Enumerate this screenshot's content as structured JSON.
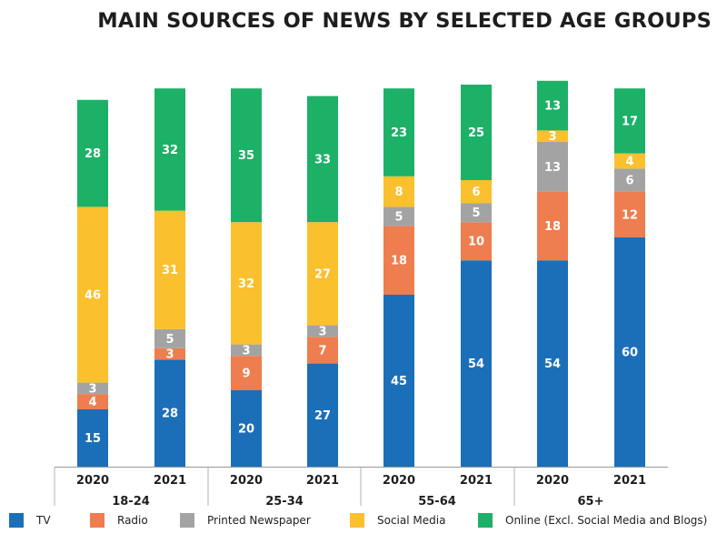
{
  "chart_data": {
    "type": "bar",
    "stacked": true,
    "title": "MAIN SOURCES OF NEWS BY SELECTED AGE GROUPS",
    "groups": [
      "18-24",
      "25-34",
      "55-64",
      "65+"
    ],
    "categories": [
      "2020",
      "2021",
      "2020",
      "2021",
      "2020",
      "2021",
      "2020",
      "2021"
    ],
    "series": [
      {
        "name": "TV",
        "color": "#1b6fb8",
        "values": [
          15,
          28,
          20,
          27,
          45,
          54,
          54,
          60
        ]
      },
      {
        "name": "Radio",
        "color": "#ee7d4f",
        "values": [
          4,
          3,
          9,
          7,
          18,
          10,
          18,
          12
        ]
      },
      {
        "name": "Printed Newspaper",
        "color": "#a3a3a3",
        "values": [
          3,
          5,
          3,
          3,
          5,
          5,
          13,
          6
        ]
      },
      {
        "name": "Social Media",
        "color": "#fbc02d",
        "values": [
          46,
          31,
          32,
          27,
          8,
          6,
          3,
          4
        ]
      },
      {
        "name": "Online (Excl. Social Media and Blogs)",
        "color": "#1db067",
        "values": [
          28,
          32,
          35,
          33,
          23,
          25,
          13,
          17
        ]
      }
    ],
    "xlabel": "",
    "ylabel": "",
    "legend_position": "bottom",
    "grid": false
  }
}
